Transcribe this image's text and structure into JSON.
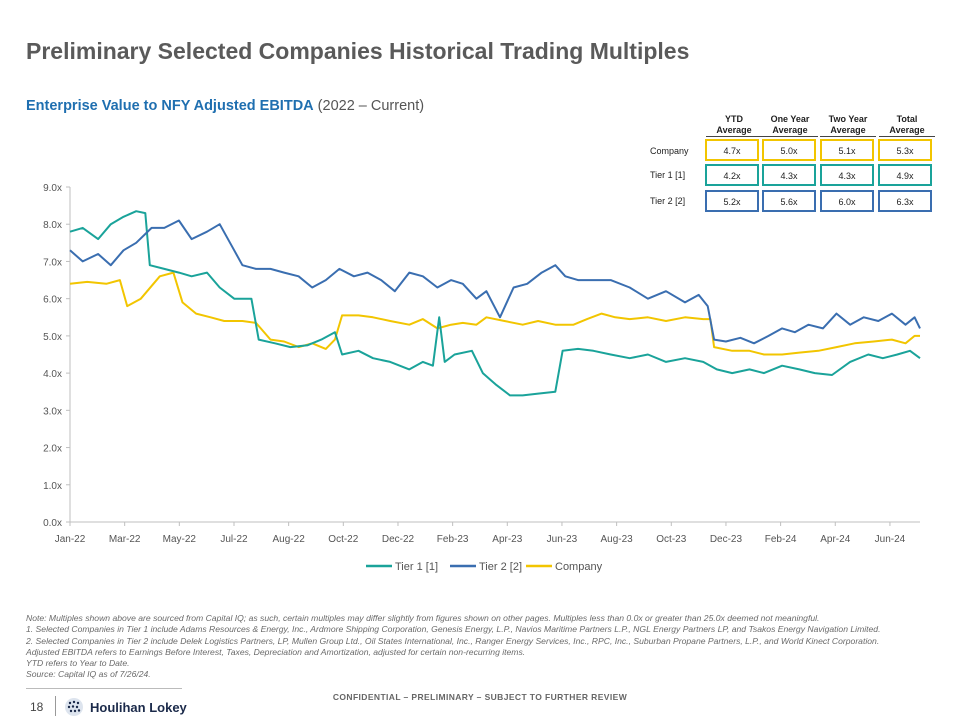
{
  "page": {
    "title": "Preliminary Selected Companies Historical Trading Multiples",
    "subtitle_main": "Enterprise Value to NFY Adjusted EBITDA",
    "subtitle_range": "(2022 – Current)"
  },
  "averages_table": {
    "headers": [
      {
        "line1": "YTD",
        "line2": "Average"
      },
      {
        "line1": "One Year",
        "line2": "Average"
      },
      {
        "line1": "Two Year",
        "line2": "Average"
      },
      {
        "line1": "Total",
        "line2": "Average"
      }
    ],
    "rows": [
      {
        "label": "Company",
        "values": [
          "4.7x",
          "5.0x",
          "5.1x",
          "5.3x"
        ]
      },
      {
        "label": "Tier 1 [1]",
        "values": [
          "4.2x",
          "4.3x",
          "4.3x",
          "4.9x"
        ]
      },
      {
        "label": "Tier 2 [2]",
        "values": [
          "5.2x",
          "5.6x",
          "6.0x",
          "6.3x"
        ]
      }
    ]
  },
  "notes": [
    "Note: Multiples shown above are sourced from Capital IQ; as such, certain multiples may differ slightly from figures shown on other pages. Multiples less than 0.0x or greater than 25.0x deemed not meaningful.",
    "1.   Selected Companies in Tier 1 include Adams Resources & Energy, Inc., Ardmore Shipping Corporation, Genesis Energy, L.P., Navios Maritime Partners L.P., NGL Energy Partners LP, and Tsakos Energy Navigation Limited.",
    "2.   Selected Companies in Tier 2 include Delek Logistics Partners, LP, Mullen Group Ltd., Oil States International, Inc., Ranger Energy Services, Inc., RPC, Inc., Suburban Propane Partners, L.P., and World Kinect Corporation.",
    "Adjusted EBITDA refers to Earnings Before Interest, Taxes, Depreciation and Amortization, adjusted for certain non-recurring items.",
    "YTD refers to Year to Date.",
    "Source: Capital IQ as of 7/26/24."
  ],
  "footer": {
    "page_number": "18",
    "brand": "Houlihan Lokey",
    "confidential": "CONFIDENTIAL – PRELIMINARY – SUBJECT TO FURTHER REVIEW"
  },
  "colors": {
    "tier1": "#1aa39a",
    "tier2": "#3a6eb0",
    "company": "#f2c500"
  },
  "chart_data": {
    "type": "line",
    "ylim": [
      0,
      9
    ],
    "y_ticks": [
      "0.0x",
      "1.0x",
      "2.0x",
      "3.0x",
      "4.0x",
      "5.0x",
      "6.0x",
      "7.0x",
      "8.0x",
      "9.0x"
    ],
    "x_ticks": [
      "Jan-22",
      "Mar-22",
      "May-22",
      "Jul-22",
      "Aug-22",
      "Oct-22",
      "Dec-22",
      "Feb-23",
      "Apr-23",
      "Jun-23",
      "Aug-23",
      "Oct-23",
      "Dec-23",
      "Feb-24",
      "Apr-24",
      "Jun-24"
    ],
    "x_range": [
      "2022-01-01",
      "2024-07-26"
    ],
    "legend_position": "bottom",
    "series": [
      {
        "name": "Tier 1 [1]",
        "color": "#1aa39a",
        "points": [
          [
            "2022-01-01",
            7.8
          ],
          [
            "2022-01-15",
            7.9
          ],
          [
            "2022-02-01",
            7.6
          ],
          [
            "2022-02-15",
            8.0
          ],
          [
            "2022-03-01",
            8.2
          ],
          [
            "2022-03-15",
            8.35
          ],
          [
            "2022-03-25",
            8.3
          ],
          [
            "2022-03-30",
            6.9
          ],
          [
            "2022-04-15",
            6.8
          ],
          [
            "2022-05-01",
            6.7
          ],
          [
            "2022-05-15",
            6.6
          ],
          [
            "2022-06-01",
            6.7
          ],
          [
            "2022-06-15",
            6.3
          ],
          [
            "2022-07-01",
            6.0
          ],
          [
            "2022-07-20",
            6.0
          ],
          [
            "2022-07-28",
            4.9
          ],
          [
            "2022-08-15",
            4.8
          ],
          [
            "2022-09-01",
            4.7
          ],
          [
            "2022-09-20",
            4.75
          ],
          [
            "2022-10-05",
            4.9
          ],
          [
            "2022-10-20",
            5.1
          ],
          [
            "2022-10-28",
            4.5
          ],
          [
            "2022-11-15",
            4.6
          ],
          [
            "2022-12-01",
            4.4
          ],
          [
            "2022-12-20",
            4.3
          ],
          [
            "2023-01-10",
            4.1
          ],
          [
            "2023-01-25",
            4.3
          ],
          [
            "2023-02-05",
            4.2
          ],
          [
            "2023-02-12",
            5.5
          ],
          [
            "2023-02-18",
            4.3
          ],
          [
            "2023-03-01",
            4.5
          ],
          [
            "2023-03-20",
            4.6
          ],
          [
            "2023-04-01",
            4.0
          ],
          [
            "2023-04-15",
            3.7
          ],
          [
            "2023-05-01",
            3.4
          ],
          [
            "2023-05-15",
            3.4
          ],
          [
            "2023-06-01",
            3.45
          ],
          [
            "2023-06-20",
            3.5
          ],
          [
            "2023-06-28",
            4.6
          ],
          [
            "2023-07-15",
            4.65
          ],
          [
            "2023-08-01",
            4.6
          ],
          [
            "2023-08-20",
            4.5
          ],
          [
            "2023-09-10",
            4.4
          ],
          [
            "2023-09-30",
            4.5
          ],
          [
            "2023-10-20",
            4.3
          ],
          [
            "2023-11-10",
            4.4
          ],
          [
            "2023-11-30",
            4.3
          ],
          [
            "2023-12-15",
            4.1
          ],
          [
            "2024-01-01",
            4.0
          ],
          [
            "2024-01-20",
            4.1
          ],
          [
            "2024-02-05",
            4.0
          ],
          [
            "2024-02-25",
            4.2
          ],
          [
            "2024-03-15",
            4.1
          ],
          [
            "2024-04-01",
            4.0
          ],
          [
            "2024-04-20",
            3.95
          ],
          [
            "2024-05-10",
            4.3
          ],
          [
            "2024-05-30",
            4.5
          ],
          [
            "2024-06-15",
            4.4
          ],
          [
            "2024-07-01",
            4.5
          ],
          [
            "2024-07-15",
            4.6
          ],
          [
            "2024-07-26",
            4.4
          ]
        ]
      },
      {
        "name": "Tier 2 [2]",
        "color": "#3a6eb0",
        "points": [
          [
            "2022-01-01",
            7.3
          ],
          [
            "2022-01-15",
            7.0
          ],
          [
            "2022-02-01",
            7.2
          ],
          [
            "2022-02-15",
            6.9
          ],
          [
            "2022-03-01",
            7.3
          ],
          [
            "2022-03-15",
            7.5
          ],
          [
            "2022-04-01",
            7.9
          ],
          [
            "2022-04-15",
            7.9
          ],
          [
            "2022-05-01",
            8.1
          ],
          [
            "2022-05-15",
            7.6
          ],
          [
            "2022-06-01",
            7.8
          ],
          [
            "2022-06-15",
            8.0
          ],
          [
            "2022-07-01",
            7.3
          ],
          [
            "2022-07-10",
            6.9
          ],
          [
            "2022-07-25",
            6.8
          ],
          [
            "2022-08-10",
            6.8
          ],
          [
            "2022-08-25",
            6.7
          ],
          [
            "2022-09-10",
            6.6
          ],
          [
            "2022-09-25",
            6.3
          ],
          [
            "2022-10-10",
            6.5
          ],
          [
            "2022-10-25",
            6.8
          ],
          [
            "2022-11-10",
            6.6
          ],
          [
            "2022-11-25",
            6.7
          ],
          [
            "2022-12-10",
            6.5
          ],
          [
            "2022-12-25",
            6.2
          ],
          [
            "2023-01-10",
            6.7
          ],
          [
            "2023-01-25",
            6.6
          ],
          [
            "2023-02-10",
            6.3
          ],
          [
            "2023-02-25",
            6.5
          ],
          [
            "2023-03-10",
            6.4
          ],
          [
            "2023-03-25",
            6.0
          ],
          [
            "2023-04-05",
            6.2
          ],
          [
            "2023-04-20",
            5.5
          ],
          [
            "2023-05-05",
            6.3
          ],
          [
            "2023-05-20",
            6.4
          ],
          [
            "2023-06-05",
            6.7
          ],
          [
            "2023-06-20",
            6.9
          ],
          [
            "2023-07-01",
            6.6
          ],
          [
            "2023-07-15",
            6.5
          ],
          [
            "2023-08-01",
            6.5
          ],
          [
            "2023-08-20",
            6.5
          ],
          [
            "2023-09-10",
            6.3
          ],
          [
            "2023-09-30",
            6.0
          ],
          [
            "2023-10-20",
            6.2
          ],
          [
            "2023-11-10",
            5.9
          ],
          [
            "2023-11-25",
            6.1
          ],
          [
            "2023-12-05",
            5.8
          ],
          [
            "2023-12-12",
            4.9
          ],
          [
            "2023-12-25",
            4.85
          ],
          [
            "2024-01-10",
            4.95
          ],
          [
            "2024-01-25",
            4.8
          ],
          [
            "2024-02-10",
            5.0
          ],
          [
            "2024-02-25",
            5.2
          ],
          [
            "2024-03-10",
            5.1
          ],
          [
            "2024-03-25",
            5.3
          ],
          [
            "2024-04-10",
            5.2
          ],
          [
            "2024-04-25",
            5.6
          ],
          [
            "2024-05-10",
            5.3
          ],
          [
            "2024-05-25",
            5.5
          ],
          [
            "2024-06-10",
            5.4
          ],
          [
            "2024-06-25",
            5.6
          ],
          [
            "2024-07-10",
            5.3
          ],
          [
            "2024-07-20",
            5.5
          ],
          [
            "2024-07-26",
            5.2
          ]
        ]
      },
      {
        "name": "Company",
        "color": "#f2c500",
        "points": [
          [
            "2022-01-01",
            6.4
          ],
          [
            "2022-01-20",
            6.45
          ],
          [
            "2022-02-10",
            6.4
          ],
          [
            "2022-02-25",
            6.5
          ],
          [
            "2022-03-05",
            5.8
          ],
          [
            "2022-03-20",
            6.0
          ],
          [
            "2022-04-10",
            6.6
          ],
          [
            "2022-04-25",
            6.7
          ],
          [
            "2022-05-05",
            5.9
          ],
          [
            "2022-05-20",
            5.6
          ],
          [
            "2022-06-05",
            5.5
          ],
          [
            "2022-06-20",
            5.4
          ],
          [
            "2022-07-10",
            5.4
          ],
          [
            "2022-07-25",
            5.35
          ],
          [
            "2022-08-10",
            4.9
          ],
          [
            "2022-08-25",
            4.85
          ],
          [
            "2022-09-10",
            4.7
          ],
          [
            "2022-09-25",
            4.8
          ],
          [
            "2022-10-10",
            4.65
          ],
          [
            "2022-10-20",
            4.9
          ],
          [
            "2022-10-28",
            5.55
          ],
          [
            "2022-11-15",
            5.55
          ],
          [
            "2022-12-01",
            5.5
          ],
          [
            "2022-12-20",
            5.4
          ],
          [
            "2023-01-10",
            5.3
          ],
          [
            "2023-01-25",
            5.45
          ],
          [
            "2023-02-10",
            5.2
          ],
          [
            "2023-02-25",
            5.3
          ],
          [
            "2023-03-10",
            5.35
          ],
          [
            "2023-03-25",
            5.3
          ],
          [
            "2023-04-05",
            5.5
          ],
          [
            "2023-04-25",
            5.4
          ],
          [
            "2023-05-15",
            5.3
          ],
          [
            "2023-06-01",
            5.4
          ],
          [
            "2023-06-20",
            5.3
          ],
          [
            "2023-07-10",
            5.3
          ],
          [
            "2023-07-25",
            5.45
          ],
          [
            "2023-08-10",
            5.6
          ],
          [
            "2023-08-25",
            5.5
          ],
          [
            "2023-09-10",
            5.45
          ],
          [
            "2023-09-30",
            5.5
          ],
          [
            "2023-10-20",
            5.4
          ],
          [
            "2023-11-10",
            5.5
          ],
          [
            "2023-11-30",
            5.45
          ],
          [
            "2023-12-08",
            5.45
          ],
          [
            "2023-12-12",
            4.7
          ],
          [
            "2024-01-01",
            4.6
          ],
          [
            "2024-01-20",
            4.6
          ],
          [
            "2024-02-05",
            4.5
          ],
          [
            "2024-02-25",
            4.5
          ],
          [
            "2024-03-15",
            4.55
          ],
          [
            "2024-04-05",
            4.6
          ],
          [
            "2024-04-25",
            4.7
          ],
          [
            "2024-05-15",
            4.8
          ],
          [
            "2024-06-05",
            4.85
          ],
          [
            "2024-06-25",
            4.9
          ],
          [
            "2024-07-10",
            4.8
          ],
          [
            "2024-07-20",
            5.0
          ],
          [
            "2024-07-26",
            5.0
          ]
        ]
      }
    ]
  }
}
